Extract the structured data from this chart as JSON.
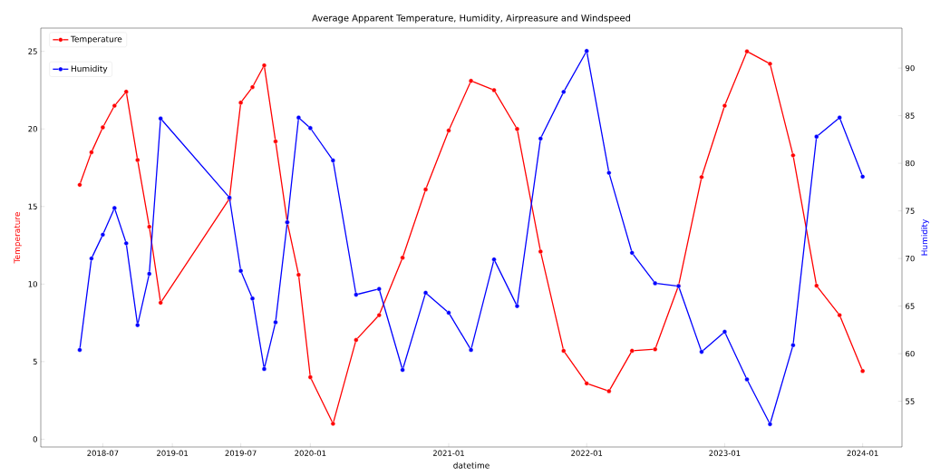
{
  "chart_data": {
    "type": "line",
    "title": "Average Apparent Temperature, Humidity, Airpreasure and Windspeed",
    "xlabel": "datetime",
    "ylabel": "Temperature",
    "y2label": "Humidity",
    "x": [
      "2018-05",
      "2018-06",
      "2018-07",
      "2018-08",
      "2018-09",
      "2018-10",
      "2018-11",
      "2018-12",
      "2019-06",
      "2019-07",
      "2019-08",
      "2019-09",
      "2019-10",
      "2019-11",
      "2019-12",
      "2020-01",
      "2020-03",
      "2020-05",
      "2020-07",
      "2020-09",
      "2020-11",
      "2021-01",
      "2021-03",
      "2021-05",
      "2021-07",
      "2021-09",
      "2021-11",
      "2022-01",
      "2022-03",
      "2022-05",
      "2022-07",
      "2022-09",
      "2022-11",
      "2023-01",
      "2023-03",
      "2023-05",
      "2023-07",
      "2023-09",
      "2023-11",
      "2024-01"
    ],
    "series": [
      {
        "name": "Temperature",
        "color": "#ff0000",
        "axis": "y",
        "values": [
          16.4,
          18.5,
          20.1,
          21.5,
          22.4,
          18.0,
          13.7,
          8.8,
          15.5,
          21.7,
          22.7,
          24.1,
          19.2,
          14.0,
          10.6,
          4.0,
          1.0,
          6.4,
          8.0,
          11.7,
          16.1,
          19.9,
          23.1,
          22.5,
          20.0,
          12.1,
          5.7,
          3.6,
          3.1,
          5.7,
          5.8,
          9.9,
          16.9,
          21.5,
          25.0,
          24.2,
          18.3,
          9.9,
          8.0,
          4.4
        ]
      },
      {
        "name": "Humidity",
        "color": "#0000ff",
        "axis": "y2",
        "values": [
          60.4,
          70.0,
          72.5,
          75.3,
          71.6,
          63.0,
          68.4,
          84.7,
          76.4,
          68.7,
          65.8,
          58.4,
          63.3,
          73.8,
          84.8,
          83.7,
          80.3,
          66.2,
          66.8,
          58.3,
          66.4,
          64.3,
          60.4,
          69.9,
          65.0,
          82.6,
          87.5,
          91.8,
          79.0,
          70.6,
          67.4,
          67.1,
          60.2,
          62.3,
          57.3,
          52.6,
          60.9,
          82.8,
          84.8,
          78.6
        ]
      }
    ],
    "xlim": [
      "2018-01-18",
      "2024-04-14"
    ],
    "xticks": [
      {
        "value": "2018-07-01",
        "label": "2018-07"
      },
      {
        "value": "2019-01-01",
        "label": "2019-01"
      },
      {
        "value": "2019-07-01",
        "label": "2019-07"
      },
      {
        "value": "2020-01-01",
        "label": "2020-01"
      },
      {
        "value": "2021-01-01",
        "label": "2021-01"
      },
      {
        "value": "2022-01-01",
        "label": "2022-01"
      },
      {
        "value": "2023-01-01",
        "label": "2023-01"
      },
      {
        "value": "2024-01-01",
        "label": "2024-01"
      }
    ],
    "ylim": [
      -0.5,
      26.5
    ],
    "yticks": [
      0,
      5,
      10,
      15,
      20,
      25
    ],
    "y2lim": [
      50.2,
      94.2
    ],
    "y2ticks": [
      55,
      60,
      65,
      70,
      75,
      80,
      85,
      90
    ],
    "marker": "circle",
    "legend": "top left"
  }
}
